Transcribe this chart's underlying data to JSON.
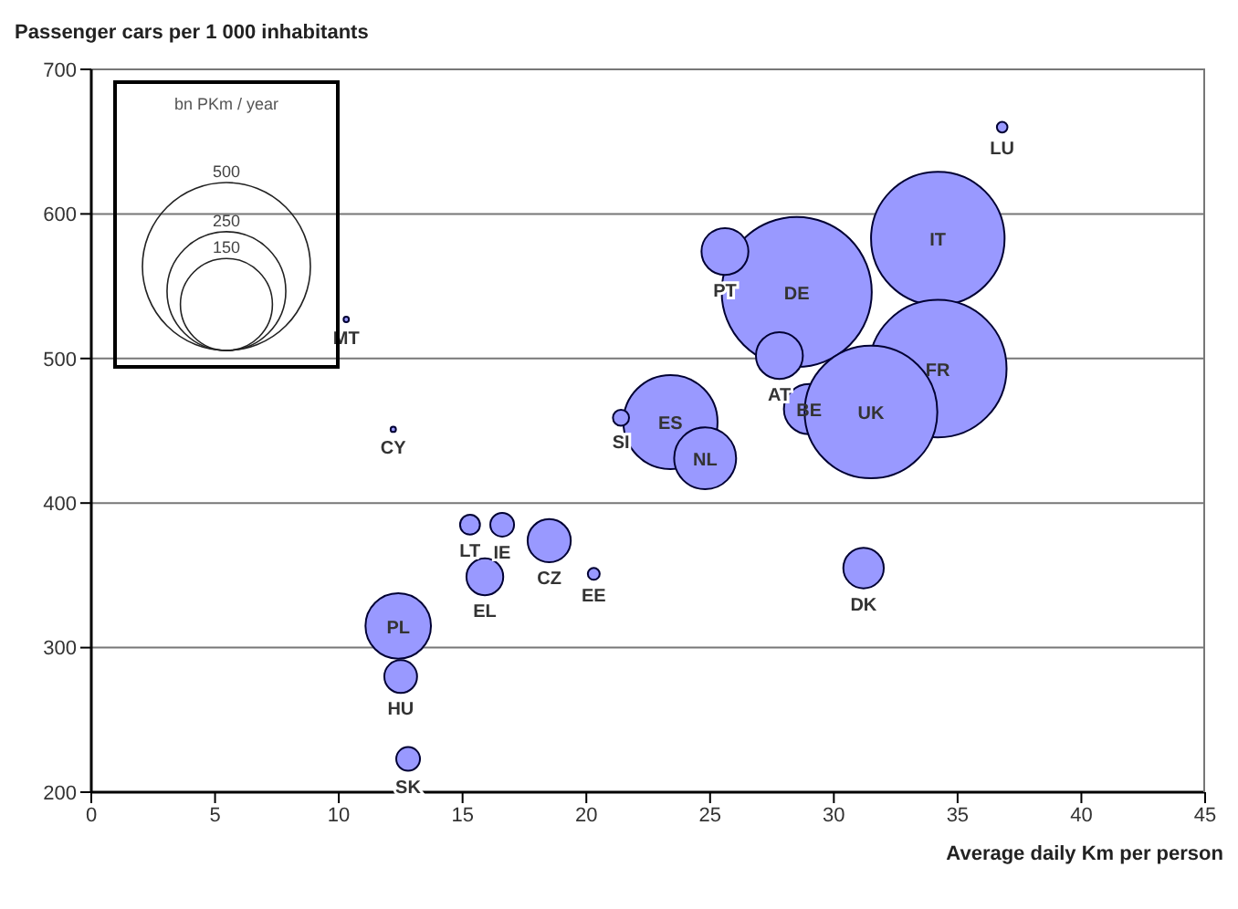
{
  "chart_data": {
    "type": "bubble",
    "ylabel": "Passenger cars per 1 000 inhabitants",
    "xlabel": "Average daily Km per person",
    "legend_title": "bn PKm / year",
    "size_legend": [
      150,
      250,
      500
    ],
    "xlim": [
      0,
      45
    ],
    "xticks": [
      0,
      5,
      10,
      15,
      20,
      25,
      30,
      35,
      40,
      45
    ],
    "ylim": [
      200,
      700
    ],
    "yticks": [
      200,
      300,
      400,
      500,
      600,
      700
    ],
    "grid": "y",
    "series": [
      {
        "color": "#9999ff",
        "x": [
          28.5,
          34.2,
          34.2,
          29.0,
          31.5,
          23.4,
          12.4,
          24.8,
          25.6,
          27.8,
          31.2,
          18.5,
          15.9,
          12.5,
          16.6,
          15.3,
          12.8,
          20.3,
          21.4,
          36.8,
          12.2,
          10.3
        ],
        "values": [
          546,
          583,
          493,
          465,
          463,
          456,
          315,
          431,
          574,
          502,
          355,
          374,
          349,
          280,
          385,
          385,
          223,
          351,
          459,
          660,
          451,
          527
        ],
        "sizes": [
          399,
          316,
          335,
          45,
          312,
          157,
          76,
          68,
          39,
          39,
          29,
          33,
          24,
          19,
          10,
          7,
          10,
          2.5,
          4.6,
          2,
          0.5,
          0.5
        ]
      }
    ],
    "annotations": [
      {
        "text": "DE",
        "x": 28.5,
        "y": 546
      },
      {
        "text": "IT",
        "x": 34.2,
        "y": 583
      },
      {
        "text": "FR",
        "x": 34.2,
        "y": 493
      },
      {
        "text": "BE",
        "x": 29.0,
        "y": 465
      },
      {
        "text": "UK",
        "x": 31.5,
        "y": 463
      },
      {
        "text": "ES",
        "x": 23.4,
        "y": 456
      },
      {
        "text": "PL",
        "x": 12.4,
        "y": 315
      },
      {
        "text": "NL",
        "x": 24.8,
        "y": 431
      },
      {
        "text": "PT",
        "x": 25.6,
        "y": 574
      },
      {
        "text": "AT",
        "x": 27.8,
        "y": 502
      },
      {
        "text": "DK",
        "x": 31.2,
        "y": 355
      },
      {
        "text": "CZ",
        "x": 18.5,
        "y": 374
      },
      {
        "text": "EL",
        "x": 15.9,
        "y": 349
      },
      {
        "text": "HU",
        "x": 12.5,
        "y": 280
      },
      {
        "text": "IE",
        "x": 16.6,
        "y": 385
      },
      {
        "text": "LT",
        "x": 15.3,
        "y": 385
      },
      {
        "text": "SK",
        "x": 12.8,
        "y": 223
      },
      {
        "text": "EE",
        "x": 20.3,
        "y": 351
      },
      {
        "text": "SI",
        "x": 21.4,
        "y": 459
      },
      {
        "text": "LU",
        "x": 36.8,
        "y": 660
      },
      {
        "text": "CY",
        "x": 12.2,
        "y": 451
      },
      {
        "text": "MT",
        "x": 10.3,
        "y": 527
      }
    ]
  }
}
